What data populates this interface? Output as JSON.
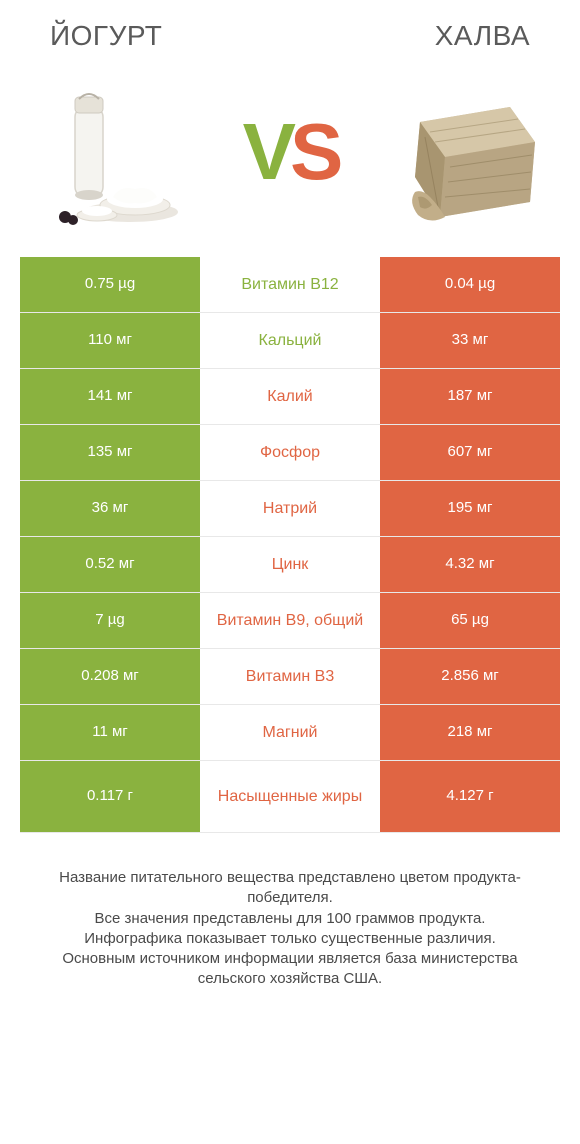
{
  "header": {
    "left_title": "ЙОГУРТ",
    "right_title": "ХАЛВА"
  },
  "vs": {
    "v": "V",
    "s": "S"
  },
  "colors": {
    "green": "#8ab23f",
    "orange": "#e06543",
    "row_border": "#e8e8e8",
    "background": "#ffffff"
  },
  "comparison": {
    "left_color": "#8ab23f",
    "right_color": "#e06543",
    "rows": [
      {
        "left": "0.75 µg",
        "label": "Витамин B12",
        "right": "0.04 µg",
        "winner": "left"
      },
      {
        "left": "110 мг",
        "label": "Кальций",
        "right": "33 мг",
        "winner": "left"
      },
      {
        "left": "141 мг",
        "label": "Калий",
        "right": "187 мг",
        "winner": "right"
      },
      {
        "left": "135 мг",
        "label": "Фосфор",
        "right": "607 мг",
        "winner": "right"
      },
      {
        "left": "36 мг",
        "label": "Натрий",
        "right": "195 мг",
        "winner": "right"
      },
      {
        "left": "0.52 мг",
        "label": "Цинк",
        "right": "4.32 мг",
        "winner": "right"
      },
      {
        "left": "7 µg",
        "label": "Витамин B9, общий",
        "right": "65 µg",
        "winner": "right"
      },
      {
        "left": "0.208 мг",
        "label": "Витамин B3",
        "right": "2.856 мг",
        "winner": "right"
      },
      {
        "left": "11 мг",
        "label": "Магний",
        "right": "218 мг",
        "winner": "right"
      },
      {
        "left": "0.117 г",
        "label": "Насыщенные жиры",
        "right": "4.127 г",
        "winner": "right",
        "tall": true
      }
    ]
  },
  "footer": {
    "line1": "Название питательного вещества представлено цветом продукта-победителя.",
    "line2": "Все значения представлены для 100 граммов продукта.",
    "line3": "Инфографика показывает только существенные различия.",
    "line4": "Основным источником информации является база министерства сельского хозяйства США."
  }
}
